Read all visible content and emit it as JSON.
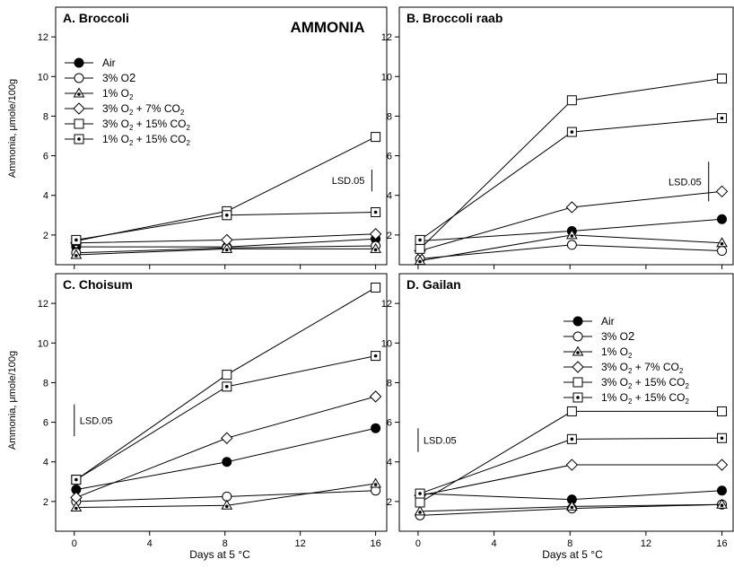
{
  "figure": {
    "title": "AMMONIA",
    "ylabel": "Ammonia, μmole/100g",
    "xlabel": "Days at 5 °C",
    "lsd_label": "LSD.05"
  },
  "chart_data": [
    {
      "type": "line",
      "panel_title": "A.  Broccoli",
      "title": "AMMONIA",
      "xlabel": "",
      "ylabel": "Ammonia, μmole/100g",
      "x": [
        0,
        8,
        16
      ],
      "xlim": [
        -0.8,
        16.4
      ],
      "ylim": [
        0.5,
        13.5
      ],
      "yticks": [
        2,
        4,
        6,
        8,
        10,
        12
      ],
      "xticks": [
        0,
        4,
        8,
        12,
        16
      ],
      "legend": "top-left",
      "lsd": {
        "label": "LSD.05",
        "x": 15.8,
        "y0": 4.2,
        "y1": 5.3
      },
      "series": [
        {
          "name": "Air",
          "marker": "filled-circle",
          "x": [
            0,
            8,
            16
          ],
          "values": [
            1.4,
            1.4,
            1.8
          ]
        },
        {
          "name": "3% O2",
          "marker": "open-circle",
          "x": [
            0,
            8,
            16
          ],
          "values": [
            1.1,
            1.35,
            1.45
          ]
        },
        {
          "name": "1% O2",
          "marker": "triangle",
          "x": [
            0,
            8,
            16
          ],
          "values": [
            1.0,
            1.3,
            1.3
          ]
        },
        {
          "name": "3% O2 + 7% CO2",
          "marker": "diamond",
          "x": [
            0,
            8,
            16
          ],
          "values": [
            1.6,
            1.75,
            2.05
          ]
        },
        {
          "name": "3% O2 + 15% CO2",
          "marker": "square",
          "x": [
            0,
            8,
            16
          ],
          "values": [
            1.7,
            3.2,
            6.95
          ]
        },
        {
          "name": "1% O2 + 15% CO2",
          "marker": "dotted-square",
          "x": [
            0,
            8,
            16
          ],
          "values": [
            1.75,
            3.0,
            3.15
          ]
        }
      ]
    },
    {
      "type": "line",
      "panel_title": "B.  Broccoli raab",
      "x": [
        0,
        8,
        16
      ],
      "xlim": [
        -0.8,
        16.4
      ],
      "ylim": [
        0.5,
        13.5
      ],
      "yticks": [
        2,
        4,
        6,
        8,
        10,
        12
      ],
      "xticks": [
        0,
        4,
        8,
        12,
        16
      ],
      "lsd": {
        "label": "LSD.05",
        "x": 15.3,
        "y0": 3.7,
        "y1": 5.7
      },
      "series": [
        {
          "name": "Air",
          "marker": "filled-circle",
          "x": [
            0,
            8,
            16
          ],
          "values": [
            1.7,
            2.2,
            2.8
          ]
        },
        {
          "name": "3% O2",
          "marker": "open-circle",
          "x": [
            0,
            8,
            16
          ],
          "values": [
            0.8,
            1.5,
            1.2
          ]
        },
        {
          "name": "1% O2",
          "marker": "triangle",
          "x": [
            0,
            8,
            16
          ],
          "values": [
            0.7,
            2.0,
            1.6
          ]
        },
        {
          "name": "3% O2 + 7% CO2",
          "marker": "diamond",
          "x": [
            0,
            8,
            16
          ],
          "values": [
            1.2,
            3.4,
            4.2
          ]
        },
        {
          "name": "3% O2 + 15% CO2",
          "marker": "square",
          "x": [
            0,
            8,
            16
          ],
          "values": [
            1.3,
            8.8,
            9.9
          ]
        },
        {
          "name": "1% O2 + 15% CO2",
          "marker": "dotted-square",
          "x": [
            0,
            8,
            16
          ],
          "values": [
            1.75,
            7.2,
            7.9
          ]
        }
      ]
    },
    {
      "type": "line",
      "panel_title": "C.  Choisum",
      "xlabel": "Days at 5 °C",
      "ylabel": "Ammonia, μmole/100g",
      "x": [
        0,
        8,
        16
      ],
      "xlim": [
        -0.8,
        16.4
      ],
      "ylim": [
        0.5,
        13.5
      ],
      "yticks": [
        2,
        4,
        6,
        8,
        10,
        12
      ],
      "xticks": [
        0,
        4,
        8,
        12,
        16
      ],
      "lsd": {
        "label": "LSD.05",
        "x": 0,
        "y0": 5.3,
        "y1": 6.9
      },
      "series": [
        {
          "name": "Air",
          "marker": "filled-circle",
          "x": [
            0,
            8,
            16
          ],
          "values": [
            2.6,
            4.0,
            5.7
          ]
        },
        {
          "name": "3% O2",
          "marker": "open-circle",
          "x": [
            0,
            8,
            16
          ],
          "values": [
            2.0,
            2.25,
            2.55
          ]
        },
        {
          "name": "1% O2",
          "marker": "triangle",
          "x": [
            0,
            8,
            16
          ],
          "values": [
            1.7,
            1.8,
            2.9
          ]
        },
        {
          "name": "3% O2 + 7% CO2",
          "marker": "diamond",
          "x": [
            0,
            8,
            16
          ],
          "values": [
            2.2,
            5.2,
            7.3
          ]
        },
        {
          "name": "3% O2 + 15% CO2",
          "marker": "square",
          "x": [
            0,
            8,
            16
          ],
          "values": [
            3.1,
            8.4,
            12.8
          ]
        },
        {
          "name": "1% O2 + 15% CO2",
          "marker": "dotted-square",
          "x": [
            0,
            8,
            16
          ],
          "values": [
            3.1,
            7.8,
            9.35
          ]
        }
      ]
    },
    {
      "type": "line",
      "panel_title": "D.  Gailan",
      "xlabel": "Days at 5 °C",
      "x": [
        0,
        8,
        16
      ],
      "xlim": [
        -0.8,
        16.4
      ],
      "ylim": [
        0.5,
        13.5
      ],
      "yticks": [
        2,
        4,
        6,
        8,
        10,
        12
      ],
      "xticks": [
        0,
        4,
        8,
        12,
        16
      ],
      "legend": "top-right",
      "lsd": {
        "label": "LSD.05",
        "x": 0,
        "y0": 4.5,
        "y1": 5.7
      },
      "series": [
        {
          "name": "Air",
          "marker": "filled-circle",
          "x": [
            0,
            8,
            16
          ],
          "values": [
            2.4,
            2.1,
            2.55
          ]
        },
        {
          "name": "3% O2",
          "marker": "open-circle",
          "x": [
            0,
            8,
            16
          ],
          "values": [
            1.3,
            1.65,
            1.85
          ]
        },
        {
          "name": "1% O2",
          "marker": "triangle",
          "x": [
            0,
            8,
            16
          ],
          "values": [
            1.5,
            1.75,
            1.85
          ]
        },
        {
          "name": "3% O2 + 7% CO2",
          "marker": "diamond",
          "x": [
            0,
            8,
            16
          ],
          "values": [
            2.3,
            3.85,
            3.85
          ]
        },
        {
          "name": "3% O2 + 15% CO2",
          "marker": "square",
          "x": [
            0,
            8,
            16
          ],
          "values": [
            1.95,
            6.55,
            6.55
          ]
        },
        {
          "name": "1% O2 + 15% CO2",
          "marker": "dotted-square",
          "x": [
            0,
            8,
            16
          ],
          "values": [
            2.4,
            5.15,
            5.2
          ]
        }
      ]
    }
  ],
  "legend_entries": [
    {
      "label": "Air",
      "gas1": "",
      "gas1_sub": "",
      "gas2": "",
      "gas2_sub": "",
      "marker": "filled-circle"
    },
    {
      "label": "3% O",
      "gas1": "2",
      "gas1_sub": "",
      "gas2": "",
      "gas2_sub": "",
      "marker": "open-circle",
      "inline_sub": true
    },
    {
      "label": "1% O",
      "gas1": "2",
      "gas1_sub": "sub",
      "gas2": "",
      "gas2_sub": "",
      "marker": "triangle"
    },
    {
      "label": "3% O",
      "gas1": "2",
      "gas1_sub": "sub",
      "gas2": " + 7% CO",
      "gas2_sub": "2",
      "marker": "diamond"
    },
    {
      "label": "3% O",
      "gas1": "2",
      "gas1_sub": "sub",
      "gas2": " + 15% CO",
      "gas2_sub": "2",
      "marker": "square"
    },
    {
      "label": "1% O",
      "gas1": "2",
      "gas1_sub": "sub",
      "gas2": " + 15% CO",
      "gas2_sub": "2",
      "marker": "dotted-square"
    }
  ]
}
